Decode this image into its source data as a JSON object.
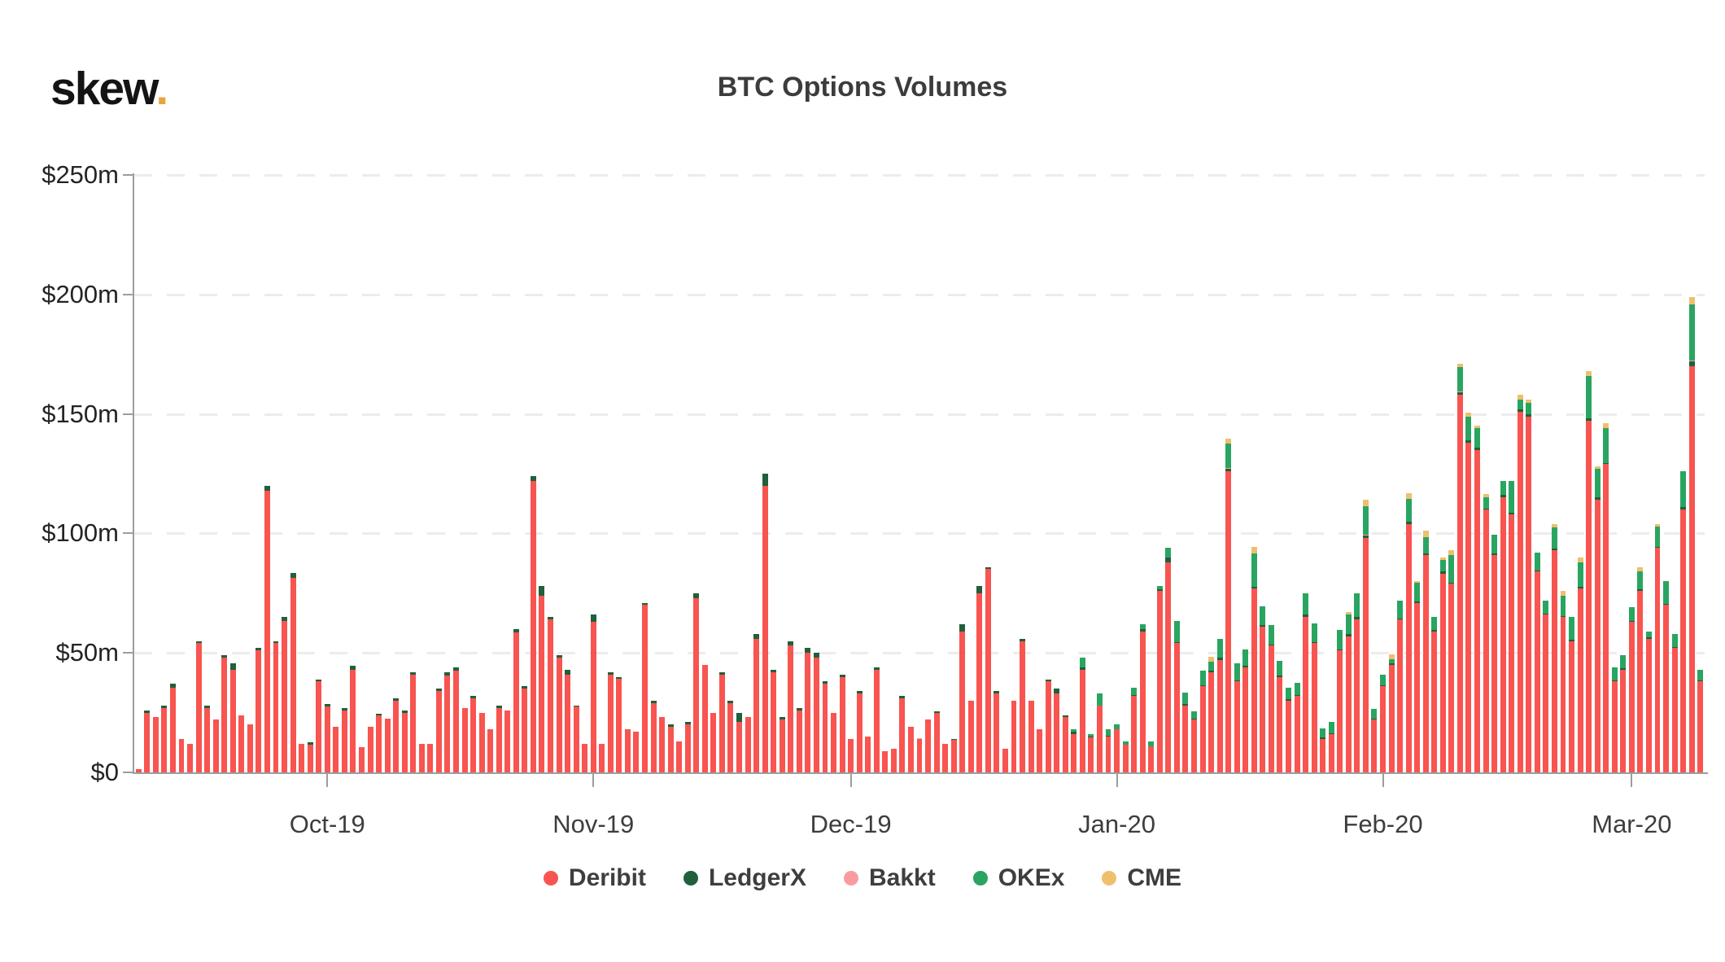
{
  "header": {
    "logo_text": "skew",
    "logo_dot": ".",
    "title": "BTC Options Volumes"
  },
  "colors": {
    "deribit": "#f85450",
    "ledgerx": "#20603c",
    "bakkt": "#f99ca2",
    "okex": "#2aa561",
    "cme": "#eec06d",
    "logo_dot": "#eba43c",
    "axis": "#9d9d9d",
    "grid": "#ececec",
    "text": "#3c3c3c"
  },
  "chart_data": {
    "type": "bar",
    "stacked": true,
    "title": "BTC Options Volumes",
    "unit": "million USD per day",
    "ylim": [
      0,
      250
    ],
    "grid": "horizontal dashed",
    "yticks": [
      {
        "label": "$0",
        "value": 0
      },
      {
        "label": "$50m",
        "value": 50
      },
      {
        "label": "$100m",
        "value": 100
      },
      {
        "label": "$150m",
        "value": 150
      },
      {
        "label": "$200m",
        "value": 200
      },
      {
        "label": "$250m",
        "value": 250
      }
    ],
    "xticks": [
      {
        "label": "Oct-19",
        "date": "2019-10-01"
      },
      {
        "label": "Nov-19",
        "date": "2019-11-01"
      },
      {
        "label": "Dec-19",
        "date": "2019-12-01"
      },
      {
        "label": "Jan-20",
        "date": "2020-01-01"
      },
      {
        "label": "Feb-20",
        "date": "2020-02-01"
      },
      {
        "label": "Mar-20",
        "date": "2020-03-01"
      }
    ],
    "legend": {
      "position": "bottom",
      "entries": [
        {
          "name": "Deribit",
          "color_key": "deribit"
        },
        {
          "name": "LedgerX",
          "color_key": "ledgerx"
        },
        {
          "name": "Bakkt",
          "color_key": "bakkt"
        },
        {
          "name": "OKEx",
          "color_key": "okex"
        },
        {
          "name": "CME",
          "color_key": "cme"
        }
      ]
    },
    "columns": [
      "date",
      "Deribit",
      "LedgerX",
      "Bakkt",
      "OKEx",
      "CME"
    ],
    "bars": [
      [
        "2019-09-09",
        1.5,
        0,
        0,
        0,
        0
      ],
      [
        "2019-09-10",
        25,
        1,
        0,
        0,
        0
      ],
      [
        "2019-09-11",
        23,
        0,
        0,
        0,
        0
      ],
      [
        "2019-09-12",
        27,
        1,
        0,
        0,
        0
      ],
      [
        "2019-09-13",
        35.5,
        1.5,
        0,
        0,
        0
      ],
      [
        "2019-09-14",
        14,
        0,
        0,
        0,
        0
      ],
      [
        "2019-09-15",
        12,
        0,
        0,
        0,
        0
      ],
      [
        "2019-09-16",
        54,
        1,
        0,
        0,
        0
      ],
      [
        "2019-09-17",
        27,
        1,
        0,
        0,
        0
      ],
      [
        "2019-09-18",
        22,
        0,
        0,
        0,
        0
      ],
      [
        "2019-09-19",
        48,
        1,
        0,
        0,
        0
      ],
      [
        "2019-09-20",
        43,
        2.5,
        0,
        0,
        0
      ],
      [
        "2019-09-21",
        24,
        0,
        0,
        0,
        0
      ],
      [
        "2019-09-22",
        20,
        0,
        0,
        0,
        0
      ],
      [
        "2019-09-23",
        51,
        1,
        0,
        0,
        0
      ],
      [
        "2019-09-24",
        118,
        2,
        0,
        0,
        0
      ],
      [
        "2019-09-25",
        54,
        1,
        0,
        0,
        0
      ],
      [
        "2019-09-26",
        63.5,
        1.5,
        0,
        0,
        0
      ],
      [
        "2019-09-27",
        81.5,
        2,
        0,
        0,
        0
      ],
      [
        "2019-09-28",
        12,
        0,
        0,
        0,
        0
      ],
      [
        "2019-09-29",
        11.5,
        1,
        0,
        0,
        0
      ],
      [
        "2019-09-30",
        38,
        1,
        0,
        0,
        0
      ],
      [
        "2019-10-01",
        27.5,
        1,
        0,
        0,
        0
      ],
      [
        "2019-10-02",
        19,
        0,
        0,
        0,
        0
      ],
      [
        "2019-10-03",
        26,
        1,
        0,
        0,
        0
      ],
      [
        "2019-10-04",
        43,
        1.5,
        0,
        0,
        0
      ],
      [
        "2019-10-05",
        10.5,
        0,
        0,
        0,
        0
      ],
      [
        "2019-10-06",
        19,
        0,
        0,
        0,
        0
      ],
      [
        "2019-10-07",
        24,
        0.5,
        0,
        0,
        0
      ],
      [
        "2019-10-08",
        22.5,
        0,
        0,
        0,
        0
      ],
      [
        "2019-10-09",
        30,
        1,
        0,
        0,
        0
      ],
      [
        "2019-10-10",
        25,
        1,
        0,
        0,
        0
      ],
      [
        "2019-10-11",
        41,
        1,
        0,
        0,
        0
      ],
      [
        "2019-10-12",
        12,
        0,
        0,
        0,
        0
      ],
      [
        "2019-10-13",
        12,
        0,
        0,
        0,
        0
      ],
      [
        "2019-10-14",
        34,
        1,
        0,
        0,
        0
      ],
      [
        "2019-10-15",
        40.5,
        1.5,
        0,
        0,
        0
      ],
      [
        "2019-10-16",
        42.5,
        1.5,
        0,
        0,
        0
      ],
      [
        "2019-10-17",
        27,
        0,
        0,
        0,
        0
      ],
      [
        "2019-10-18",
        31,
        1,
        0,
        0,
        0
      ],
      [
        "2019-10-19",
        25,
        0,
        0,
        0,
        0
      ],
      [
        "2019-10-20",
        18,
        0,
        0,
        0,
        0
      ],
      [
        "2019-10-21",
        27,
        1,
        0,
        0,
        0
      ],
      [
        "2019-10-22",
        26,
        0,
        0,
        0,
        0
      ],
      [
        "2019-10-23",
        58.5,
        1.5,
        0,
        0,
        0
      ],
      [
        "2019-10-24",
        35,
        1,
        0,
        0,
        0
      ],
      [
        "2019-10-25",
        122,
        2,
        0,
        0,
        0
      ],
      [
        "2019-10-26",
        74,
        4,
        0,
        0,
        0
      ],
      [
        "2019-10-27",
        64,
        1,
        0,
        0,
        0
      ],
      [
        "2019-10-28",
        48,
        1,
        0,
        0,
        0
      ],
      [
        "2019-10-29",
        41,
        2,
        0,
        0,
        0
      ],
      [
        "2019-10-30",
        27.5,
        0.5,
        0,
        0,
        0
      ],
      [
        "2019-10-31",
        12,
        0,
        0,
        0,
        0
      ],
      [
        "2019-11-01",
        63,
        3,
        0,
        0,
        0
      ],
      [
        "2019-11-02",
        12,
        0,
        0,
        0,
        0
      ],
      [
        "2019-11-03",
        41,
        1,
        0,
        0,
        0
      ],
      [
        "2019-11-04",
        39,
        1,
        0,
        0,
        0
      ],
      [
        "2019-11-05",
        18,
        0,
        0,
        0,
        0
      ],
      [
        "2019-11-06",
        17,
        0,
        0,
        0,
        0
      ],
      [
        "2019-11-07",
        70,
        1,
        0,
        0,
        0
      ],
      [
        "2019-11-08",
        29,
        1,
        0,
        0,
        0
      ],
      [
        "2019-11-09",
        23,
        0,
        0,
        0,
        0
      ],
      [
        "2019-11-10",
        19,
        1,
        0,
        0,
        0
      ],
      [
        "2019-11-11",
        13,
        0,
        0,
        0,
        0
      ],
      [
        "2019-11-12",
        20,
        1,
        0,
        0,
        0
      ],
      [
        "2019-11-13",
        73,
        2,
        0,
        0,
        0
      ],
      [
        "2019-11-14",
        45,
        0,
        0,
        0,
        0
      ],
      [
        "2019-11-15",
        25,
        0,
        0,
        0,
        0
      ],
      [
        "2019-11-16",
        41,
        1,
        0,
        0,
        0
      ],
      [
        "2019-11-17",
        29,
        1,
        0,
        0,
        0
      ],
      [
        "2019-11-18",
        21,
        4,
        0,
        0,
        0
      ],
      [
        "2019-11-19",
        23,
        0,
        0,
        0,
        0
      ],
      [
        "2019-11-20",
        56,
        2,
        0,
        0,
        0
      ],
      [
        "2019-11-21",
        120,
        5,
        0,
        0,
        0
      ],
      [
        "2019-11-22",
        42,
        1,
        0,
        0,
        0
      ],
      [
        "2019-11-23",
        22,
        1,
        0,
        0,
        0
      ],
      [
        "2019-11-24",
        53,
        2,
        0,
        0,
        0
      ],
      [
        "2019-11-25",
        26,
        1,
        0,
        0,
        0
      ],
      [
        "2019-11-26",
        50,
        2,
        0,
        0,
        0
      ],
      [
        "2019-11-27",
        48,
        2,
        0,
        0,
        0
      ],
      [
        "2019-11-28",
        37,
        1,
        0,
        0,
        0
      ],
      [
        "2019-11-29",
        25,
        0,
        0,
        0,
        0
      ],
      [
        "2019-11-30",
        40,
        1,
        0,
        0,
        0
      ],
      [
        "2019-12-01",
        14,
        0,
        0,
        0,
        0
      ],
      [
        "2019-12-02",
        33,
        1,
        0,
        0,
        0
      ],
      [
        "2019-12-03",
        15,
        0,
        0,
        0,
        0
      ],
      [
        "2019-12-04",
        43,
        1,
        0,
        0,
        0
      ],
      [
        "2019-12-05",
        9,
        0,
        0,
        0,
        0
      ],
      [
        "2019-12-06",
        10,
        0,
        0,
        0,
        0
      ],
      [
        "2019-12-07",
        31,
        1,
        0,
        0,
        0
      ],
      [
        "2019-12-08",
        19,
        0,
        0,
        0,
        0
      ],
      [
        "2019-12-09",
        14,
        0,
        0.3,
        0,
        0
      ],
      [
        "2019-12-10",
        22,
        0,
        0,
        0,
        0
      ],
      [
        "2019-12-11",
        25,
        0.5,
        0,
        0,
        0
      ],
      [
        "2019-12-12",
        12,
        0,
        0,
        0,
        0
      ],
      [
        "2019-12-13",
        13.5,
        0.5,
        0,
        0,
        0
      ],
      [
        "2019-12-14",
        59,
        3,
        0,
        0,
        0
      ],
      [
        "2019-12-15",
        30,
        0,
        0,
        0,
        0
      ],
      [
        "2019-12-16",
        75,
        3,
        0,
        0,
        0
      ],
      [
        "2019-12-17",
        85,
        1,
        0,
        0,
        0
      ],
      [
        "2019-12-18",
        33,
        1,
        0,
        0,
        0
      ],
      [
        "2019-12-19",
        10,
        0,
        0,
        0,
        0
      ],
      [
        "2019-12-20",
        30,
        0,
        0,
        0,
        0
      ],
      [
        "2019-12-21",
        55,
        1,
        0,
        0,
        0
      ],
      [
        "2019-12-22",
        30,
        0,
        0,
        0,
        0
      ],
      [
        "2019-12-23",
        18,
        0,
        0,
        0,
        0
      ],
      [
        "2019-12-24",
        38,
        1,
        0,
        0,
        0
      ],
      [
        "2019-12-25",
        33,
        2,
        0,
        0,
        0
      ],
      [
        "2019-12-26",
        23,
        1,
        0,
        0,
        0
      ],
      [
        "2019-12-27",
        16,
        1,
        0,
        1,
        0
      ],
      [
        "2019-12-28",
        43,
        1,
        0,
        4,
        0
      ],
      [
        "2019-12-29",
        14.5,
        0.5,
        0,
        1,
        0
      ],
      [
        "2019-12-30",
        28,
        0,
        0,
        5,
        0
      ],
      [
        "2019-12-31",
        15,
        0.5,
        0,
        2.5,
        0
      ],
      [
        "2020-01-01",
        18,
        0,
        0,
        2,
        0
      ],
      [
        "2020-01-02",
        11.5,
        0,
        0,
        1.5,
        0
      ],
      [
        "2020-01-03",
        32,
        0.5,
        0,
        3,
        0
      ],
      [
        "2020-01-04",
        59,
        1,
        0,
        2,
        0
      ],
      [
        "2020-01-05",
        11,
        0,
        0,
        2,
        0
      ],
      [
        "2020-01-06",
        76,
        0.5,
        0,
        1.5,
        0
      ],
      [
        "2020-01-07",
        88,
        2,
        0,
        4,
        0
      ],
      [
        "2020-01-08",
        54,
        0.5,
        0,
        9,
        0
      ],
      [
        "2020-01-09",
        28,
        0.5,
        0,
        5,
        0
      ],
      [
        "2020-01-10",
        22,
        0.5,
        0,
        3,
        0
      ],
      [
        "2020-01-11",
        36,
        0.5,
        0,
        6,
        0
      ],
      [
        "2020-01-12",
        42,
        0.5,
        0,
        4,
        2
      ],
      [
        "2020-01-13",
        47,
        1,
        0,
        8,
        0
      ],
      [
        "2020-01-14",
        126,
        1,
        0.5,
        10,
        2
      ],
      [
        "2020-01-15",
        38,
        0.5,
        0,
        7,
        0
      ],
      [
        "2020-01-16",
        44,
        0.5,
        0,
        7,
        0
      ],
      [
        "2020-01-17",
        77,
        0.5,
        0,
        14,
        3
      ],
      [
        "2020-01-18",
        61,
        0.5,
        0,
        8,
        0
      ],
      [
        "2020-01-19",
        53,
        0.5,
        0,
        8,
        0
      ],
      [
        "2020-01-20",
        40,
        0.5,
        0,
        6,
        0
      ],
      [
        "2020-01-21",
        30,
        0.5,
        0,
        5,
        0
      ],
      [
        "2020-01-22",
        32,
        0.5,
        0,
        5,
        0
      ],
      [
        "2020-01-23",
        65,
        1,
        0,
        9,
        0
      ],
      [
        "2020-01-24",
        54,
        0.5,
        0,
        8,
        0
      ],
      [
        "2020-01-25",
        14,
        0.5,
        0,
        4,
        0
      ],
      [
        "2020-01-26",
        16,
        0.5,
        0,
        4.5,
        0
      ],
      [
        "2020-01-27",
        51,
        0.5,
        0,
        8,
        0
      ],
      [
        "2020-01-28",
        57,
        1,
        0,
        8,
        1
      ],
      [
        "2020-01-29",
        64,
        1,
        0,
        10,
        0
      ],
      [
        "2020-01-30",
        98,
        1,
        0.5,
        12,
        2.5
      ],
      [
        "2020-01-31",
        22,
        0.5,
        0,
        4,
        0
      ],
      [
        "2020-02-01",
        36,
        0.5,
        0,
        4.5,
        0
      ],
      [
        "2020-02-02",
        45,
        0.5,
        0,
        2,
        2
      ],
      [
        "2020-02-03",
        64,
        0.5,
        0,
        7.5,
        0
      ],
      [
        "2020-02-04",
        104,
        1,
        0,
        9.5,
        2.5
      ],
      [
        "2020-02-05",
        71,
        0.5,
        0,
        8,
        0.5
      ],
      [
        "2020-02-06",
        91,
        0.5,
        0,
        7,
        2.5
      ],
      [
        "2020-02-07",
        59,
        0.5,
        0,
        5.5,
        0
      ],
      [
        "2020-02-08",
        83,
        1,
        0,
        5,
        1
      ],
      [
        "2020-02-09",
        79,
        0.5,
        0,
        11.5,
        2
      ],
      [
        "2020-02-10",
        158,
        1,
        0.5,
        10,
        1.5
      ],
      [
        "2020-02-11",
        138,
        1,
        0,
        10,
        1.5
      ],
      [
        "2020-02-12",
        135,
        1,
        0,
        8,
        1
      ],
      [
        "2020-02-13",
        110,
        0.5,
        0,
        4.5,
        1.5
      ],
      [
        "2020-02-14",
        91,
        0.5,
        0,
        8,
        0
      ],
      [
        "2020-02-15",
        115,
        1,
        0,
        6,
        0
      ],
      [
        "2020-02-16",
        108,
        0.5,
        0,
        13.5,
        0
      ],
      [
        "2020-02-17",
        151,
        1,
        0,
        4,
        2
      ],
      [
        "2020-02-18",
        149,
        1,
        0,
        4.5,
        1.5
      ],
      [
        "2020-02-19",
        84,
        0.5,
        0,
        7.5,
        0
      ],
      [
        "2020-02-20",
        66,
        0.5,
        0,
        5.5,
        0
      ],
      [
        "2020-02-21",
        93,
        0.5,
        0,
        9,
        1.5
      ],
      [
        "2020-02-22",
        65,
        0.5,
        0,
        8.5,
        2
      ],
      [
        "2020-02-23",
        55,
        0.5,
        0,
        9.5,
        0
      ],
      [
        "2020-02-24",
        77,
        0.5,
        0,
        10.5,
        2
      ],
      [
        "2020-02-25",
        147,
        1,
        0,
        18,
        2
      ],
      [
        "2020-02-26",
        114,
        1,
        0,
        12,
        1
      ],
      [
        "2020-02-27",
        129,
        0.5,
        0,
        14.5,
        2
      ],
      [
        "2020-02-28",
        38,
        0.5,
        0,
        5.5,
        0
      ],
      [
        "2020-02-29",
        43,
        0.5,
        0,
        5.5,
        0
      ],
      [
        "2020-03-01",
        63,
        0.5,
        0,
        5.5,
        0
      ],
      [
        "2020-03-02",
        76,
        0.5,
        0,
        7.5,
        2
      ],
      [
        "2020-03-03",
        56,
        0.5,
        0,
        2.5,
        0
      ],
      [
        "2020-03-04",
        94,
        0.5,
        0,
        8.5,
        1
      ],
      [
        "2020-03-05",
        70,
        0.5,
        0,
        9.5,
        0
      ],
      [
        "2020-03-06",
        52,
        0.5,
        0,
        5.5,
        0
      ],
      [
        "2020-03-07",
        110,
        1,
        0,
        15,
        0
      ],
      [
        "2020-03-08",
        170,
        2,
        0.5,
        23.5,
        3
      ],
      [
        "2020-03-09",
        38,
        0.5,
        0,
        4.5,
        0
      ]
    ]
  }
}
